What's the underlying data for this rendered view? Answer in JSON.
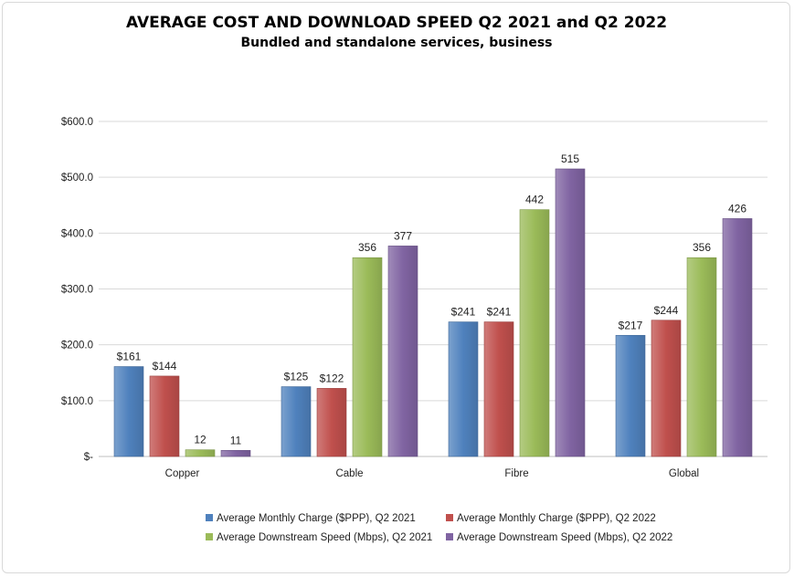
{
  "chart_data": {
    "type": "bar",
    "title": "AVERAGE COST AND DOWNLOAD SPEED Q2 2021 and Q2 2022",
    "subtitle": "Bundled and standalone services, business",
    "categories": [
      "Copper",
      "Cable",
      "Fibre",
      "Global"
    ],
    "y_tick_labels": [
      "$-",
      "$100.0",
      "$200.0",
      "$300.0",
      "$400.0",
      "$500.0",
      "$600.0"
    ],
    "ylim": [
      0,
      600
    ],
    "grid": true,
    "legend_position": "bottom",
    "series": [
      {
        "name": "Average Monthly Charge ($PPP), Q2 2021",
        "color": "#4F81BD",
        "values": [
          161,
          125,
          241,
          217
        ],
        "labels": [
          "$161",
          "$125",
          "$241",
          "$217"
        ]
      },
      {
        "name": "Average Monthly Charge ($PPP), Q2 2022",
        "color": "#C0504D",
        "values": [
          144,
          122,
          241,
          244
        ],
        "labels": [
          "$144",
          "$122",
          "$241",
          "$244"
        ]
      },
      {
        "name": "Average Downstream Speed (Mbps), Q2 2021",
        "color": "#9BBB59",
        "values": [
          12,
          356,
          442,
          356
        ],
        "labels": [
          "12",
          "356",
          "442",
          "356"
        ]
      },
      {
        "name": "Average Downstream Speed (Mbps), Q2 2022",
        "color": "#8064A2",
        "values": [
          11,
          377,
          515,
          426
        ],
        "labels": [
          "11",
          "377",
          "515",
          "426"
        ]
      }
    ]
  }
}
